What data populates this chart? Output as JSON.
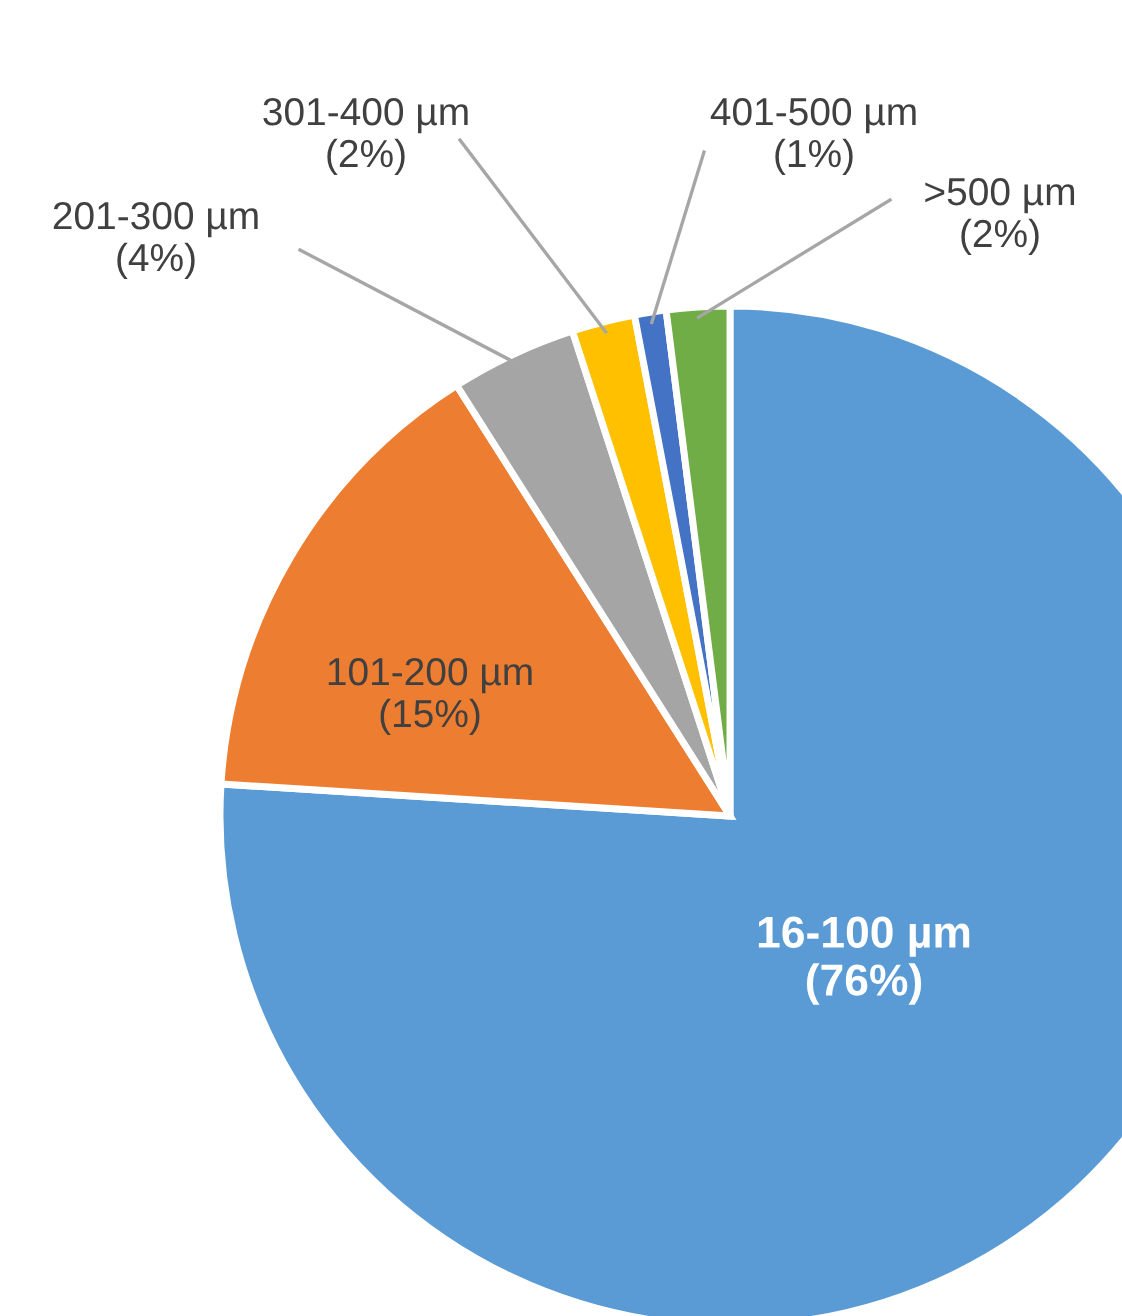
{
  "chart_data": {
    "type": "pie",
    "categories": [
      "16-100 µm",
      "101-200 µm",
      "201-300 µm",
      "301-400 µm",
      "401-500 µm",
      ">500 µm"
    ],
    "values": [
      76,
      15,
      4,
      2,
      1,
      2
    ],
    "value_labels": [
      "(76%)",
      "(15%)",
      "(4%)",
      "(2%)",
      "(1%)",
      "(2%)"
    ],
    "colors": [
      "#5b9bd5",
      "#ed7d31",
      "#a5a5a5",
      "#ffc000",
      "#4472c4",
      "#70ad47"
    ],
    "legend": false
  }
}
